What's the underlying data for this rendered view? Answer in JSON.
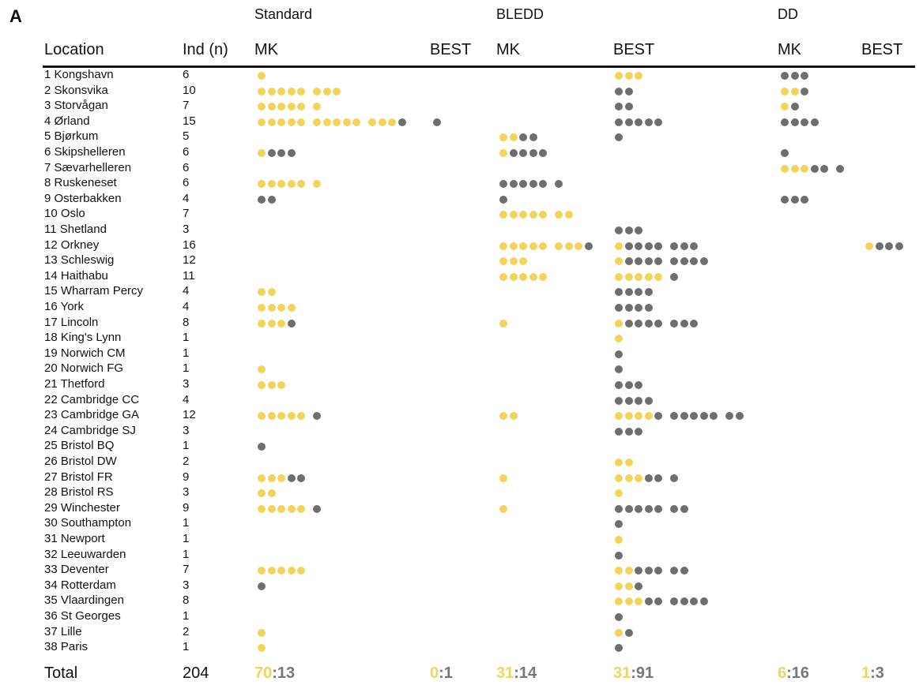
{
  "panel_label": "A",
  "groups": [
    "Standard",
    "BLEDD",
    "DD"
  ],
  "headers": {
    "location": "Location",
    "ind": "Ind (n)",
    "cols": [
      "MK",
      "BEST",
      "MK",
      "BEST",
      "MK",
      "BEST"
    ]
  },
  "colors": {
    "yellow": "#f2d45b",
    "grey": "#6e6e6e"
  },
  "rows": [
    {
      "loc": "1 Kongshavn",
      "n": "6",
      "cells": [
        "y",
        "",
        "",
        "yyy",
        "ggg",
        ""
      ]
    },
    {
      "loc": "2 Skonsvika",
      "n": "10",
      "cells": [
        "yyyyyyyy",
        "",
        "",
        "gg",
        "yyg",
        ""
      ]
    },
    {
      "loc": "3 Storvågan",
      "n": "7",
      "cells": [
        "yyyyyy",
        "",
        "",
        "gg",
        "yg",
        ""
      ]
    },
    {
      "loc": "4 Ørland",
      "n": "15",
      "cells": [
        "yyyyyyyyyyyyyg",
        "g",
        "",
        "ggggg",
        "gggg",
        ""
      ]
    },
    {
      "loc": "5 Bjørkum",
      "n": "5",
      "cells": [
        "",
        "",
        "yygg",
        "g",
        "",
        ""
      ]
    },
    {
      "loc": "6 Skipshelleren",
      "n": "6",
      "cells": [
        "yggg",
        "",
        "ygggg",
        "",
        "g",
        ""
      ]
    },
    {
      "loc": "7 Sævarhelleren",
      "n": "6",
      "cells": [
        "",
        "",
        "",
        "",
        "yyyggg",
        ""
      ]
    },
    {
      "loc": "8 Ruskeneset",
      "n": "6",
      "cells": [
        "yyyyyy",
        "",
        "gggggg",
        "",
        "",
        ""
      ]
    },
    {
      "loc": "9 Osterbakken",
      "n": "4",
      "cells": [
        "gg",
        "",
        "g",
        "",
        "ggg",
        ""
      ]
    },
    {
      "loc": "10 Oslo",
      "n": "7",
      "cells": [
        "",
        "",
        "yyyyyyy",
        "",
        "",
        ""
      ]
    },
    {
      "loc": "11 Shetland",
      "n": "3",
      "cells": [
        "",
        "",
        "",
        "ggg",
        "",
        ""
      ]
    },
    {
      "loc": "12 Orkney",
      "n": "16",
      "cells": [
        "",
        "",
        "yyyyyyyyg",
        "yggggggg",
        "",
        "yggg"
      ]
    },
    {
      "loc": "13 Schleswig",
      "n": "12",
      "cells": [
        "",
        "",
        "yyy",
        "ygggggggg",
        "",
        ""
      ]
    },
    {
      "loc": "14 Haithabu",
      "n": "11",
      "cells": [
        "",
        "",
        "yyyyy",
        "yyyyyg",
        "",
        ""
      ]
    },
    {
      "loc": "15 Wharram Percy",
      "n": "4",
      "cells": [
        "yy",
        "",
        "",
        "gggg",
        "",
        ""
      ]
    },
    {
      "loc": "16 York",
      "n": "4",
      "cells": [
        "yyyy",
        "",
        "",
        "gggg",
        "",
        ""
      ]
    },
    {
      "loc": "17 Lincoln",
      "n": "8",
      "cells": [
        "yyyg",
        "",
        "y",
        "yggggggg",
        "",
        ""
      ]
    },
    {
      "loc": "18 King's Lynn",
      "n": "1",
      "cells": [
        "",
        "",
        "",
        "y",
        "",
        ""
      ]
    },
    {
      "loc": "19 Norwich CM",
      "n": "1",
      "cells": [
        "",
        "",
        "",
        "g",
        "",
        ""
      ]
    },
    {
      "loc": "20 Norwich FG",
      "n": "1",
      "cells": [
        "y",
        "",
        "",
        "g",
        "",
        ""
      ]
    },
    {
      "loc": "21 Thetford",
      "n": "3",
      "cells": [
        "yyy",
        "",
        "",
        "ggg",
        "",
        ""
      ]
    },
    {
      "loc": "22 Cambridge CC",
      "n": "4",
      "cells": [
        "",
        "",
        "",
        "gggg",
        "",
        ""
      ]
    },
    {
      "loc": "23 Cambridge GA",
      "n": "12",
      "cells": [
        "yyyyyg",
        "",
        "yy",
        "yyyygggggggg",
        "",
        ""
      ]
    },
    {
      "loc": "24 Cambridge SJ",
      "n": "3",
      "cells": [
        "",
        "",
        "",
        "ggg",
        "",
        ""
      ]
    },
    {
      "loc": "25 Bristol BQ",
      "n": "1",
      "cells": [
        "g",
        "",
        "",
        "",
        "",
        ""
      ]
    },
    {
      "loc": "26 Bristol DW",
      "n": "2",
      "cells": [
        "",
        "",
        "",
        "yy",
        "",
        ""
      ]
    },
    {
      "loc": "27 Bristol FR",
      "n": "9",
      "cells": [
        "yyygg",
        "",
        "y",
        "yyyggg",
        "",
        ""
      ]
    },
    {
      "loc": "28 Bristol RS",
      "n": "3",
      "cells": [
        "yy",
        "",
        "",
        "y",
        "",
        ""
      ]
    },
    {
      "loc": "29 Winchester",
      "n": "9",
      "cells": [
        "yyyyyg",
        "",
        "y",
        "ggggggg",
        "",
        ""
      ]
    },
    {
      "loc": "30 Southampton",
      "n": "1",
      "cells": [
        "",
        "",
        "",
        "g",
        "",
        ""
      ]
    },
    {
      "loc": "31 Newport",
      "n": "1",
      "cells": [
        "",
        "",
        "",
        "y",
        "",
        ""
      ]
    },
    {
      "loc": "32 Leeuwarden",
      "n": "1",
      "cells": [
        "",
        "",
        "",
        "g",
        "",
        ""
      ]
    },
    {
      "loc": "33 Deventer",
      "n": "7",
      "cells": [
        "yyyyy",
        "",
        "",
        "yyggggg",
        "",
        ""
      ]
    },
    {
      "loc": "34 Rotterdam",
      "n": "3",
      "cells": [
        "g",
        "",
        "",
        "yyg",
        "",
        ""
      ]
    },
    {
      "loc": "35 Vlaardingen",
      "n": "8",
      "cells": [
        "",
        "",
        "",
        "yyygggggg",
        "",
        ""
      ]
    },
    {
      "loc": "36 St Georges",
      "n": "1",
      "cells": [
        "",
        "",
        "",
        "g",
        "",
        ""
      ]
    },
    {
      "loc": "37 Lille",
      "n": "2",
      "cells": [
        "y",
        "",
        "",
        "yg",
        "",
        ""
      ]
    },
    {
      "loc": "38 Paris",
      "n": "1",
      "cells": [
        "y",
        "",
        "",
        "g",
        "",
        ""
      ]
    }
  ],
  "total": {
    "label": "Total",
    "n": "204",
    "cols": [
      {
        "a": "70",
        "sep": ":",
        "b": "13"
      },
      {
        "a": "0",
        "sep": ":",
        "b": "1"
      },
      {
        "a": "31",
        "sep": ":",
        "b": "14"
      },
      {
        "a": "31",
        "sep": ":",
        "b": "91"
      },
      {
        "a": "6",
        "sep": ":",
        "b": "16"
      },
      {
        "a": "1",
        "sep": ":",
        "b": "3"
      }
    ]
  }
}
